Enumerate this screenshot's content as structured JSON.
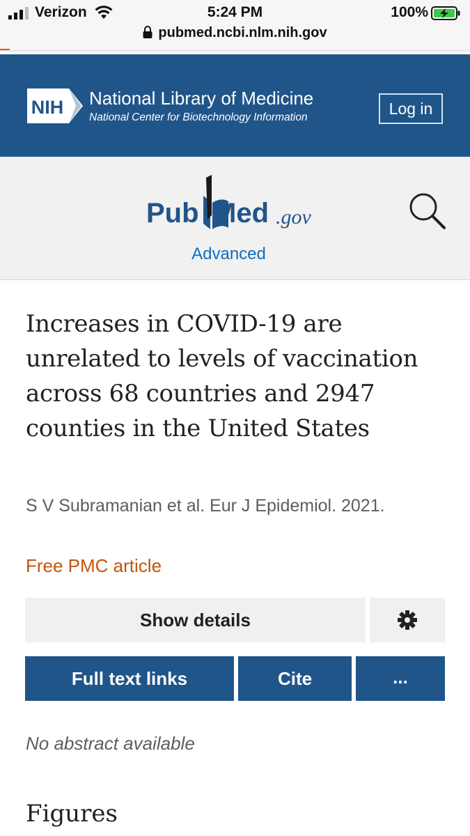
{
  "status_bar": {
    "carrier": "Verizon",
    "time": "5:24 PM",
    "battery_percent": "100%",
    "url": "pubmed.ncbi.nlm.nih.gov",
    "icons": [
      "signal-icon",
      "wifi-icon",
      "battery-charging-icon",
      "lock-icon"
    ]
  },
  "nlm_header": {
    "logo_text": "NIH",
    "title": "National Library of Medicine",
    "subtitle": "National Center for Biotechnology Information",
    "login_label": "Log in",
    "colors": {
      "background": "#20558a",
      "text": "#ffffff"
    }
  },
  "pubmed": {
    "logo_text": {
      "pub": "Pub",
      "med": "Med",
      "gov": ".gov"
    },
    "advanced_label": "Advanced",
    "icons": [
      "search-icon"
    ],
    "colors": {
      "background": "#f1f1f1",
      "logo_blue": "#20558a",
      "link": "#0d6ebf"
    }
  },
  "article": {
    "title": "Increases in COVID-19 are unrelated to levels of vaccination across 68 countries and 2947 counties in the United States",
    "citation": "S V Subramanian et al. Eur J Epidemiol. 2021.",
    "free_pmc_label": "Free PMC article",
    "colors": {
      "free_pmc": "#c4540a"
    }
  },
  "actions": {
    "show_details_label": "Show details",
    "full_text_links_label": "Full text links",
    "cite_label": "Cite",
    "more_label": "...",
    "icons": [
      "gear-icon"
    ]
  },
  "abstract": {
    "text": "No abstract available"
  },
  "sections": {
    "figures_heading": "Figures"
  }
}
